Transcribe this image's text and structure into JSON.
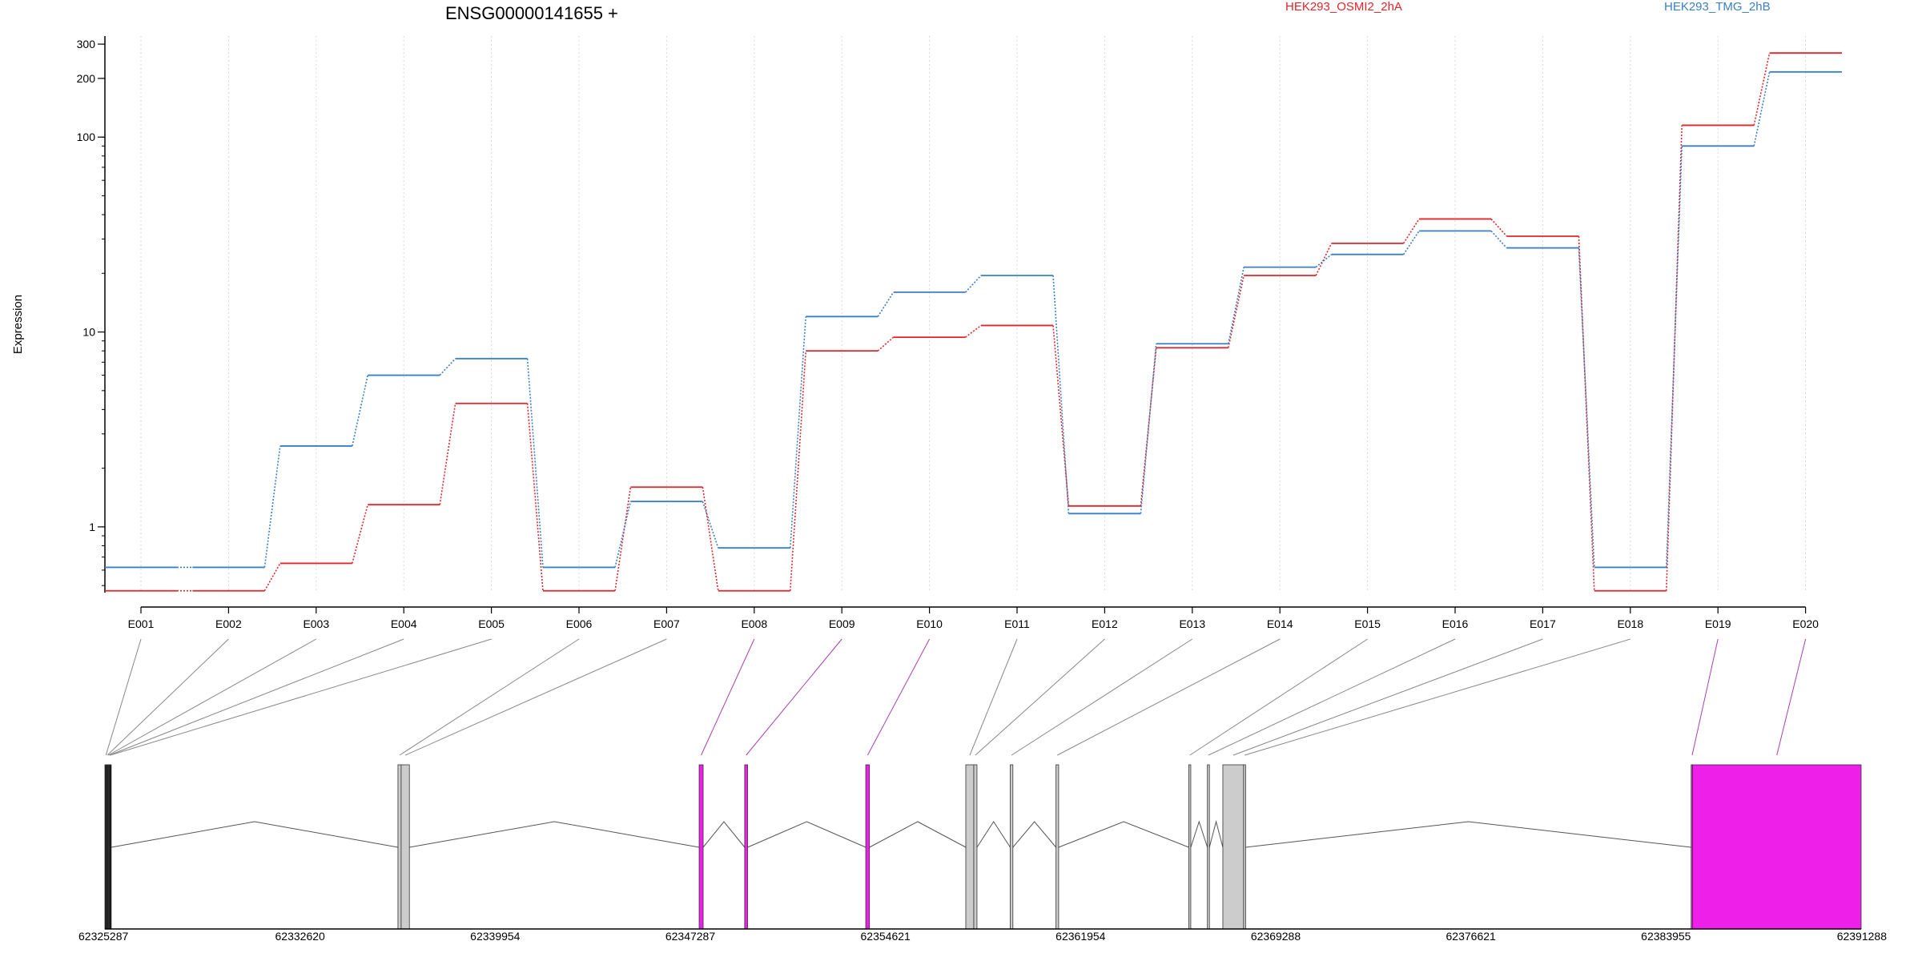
{
  "chart_data": {
    "type": "line",
    "title": "ENSG00000141655 +",
    "ylabel": "Expression",
    "y_scale": "log",
    "ylim": [
      0.46,
      330
    ],
    "y_ticks": [
      1,
      10,
      100,
      200,
      300
    ],
    "y_tick_labels": [
      "1",
      "10",
      "100",
      "200",
      "300"
    ],
    "grid": "vertical dotted per exon",
    "legend_placement": "top-right",
    "categories": [
      "E001",
      "E002",
      "E003",
      "E004",
      "E005",
      "E006",
      "E007",
      "E008",
      "E009",
      "E010",
      "E011",
      "E012",
      "E013",
      "E014",
      "E015",
      "E016",
      "E017",
      "E018",
      "E019",
      "E020"
    ],
    "series": [
      {
        "name": "HEK293_OSMI2_2hA",
        "color": "#e3242b",
        "values": [
          0.47,
          0.47,
          0.65,
          1.3,
          4.3,
          0.47,
          1.6,
          0.47,
          8.0,
          9.4,
          10.8,
          1.28,
          8.3,
          19.5,
          28.5,
          38.0,
          31.0,
          0.47,
          115,
          270
        ]
      },
      {
        "name": "HEK293_TMG_2hB",
        "color": "#3b7fc4",
        "values": [
          0.62,
          0.62,
          2.6,
          6.0,
          7.3,
          0.62,
          1.35,
          0.78,
          12.0,
          16.0,
          19.5,
          1.17,
          8.7,
          21.5,
          25.0,
          33.0,
          27.0,
          0.62,
          90,
          216
        ]
      }
    ],
    "gene_model": {
      "coord_ticks": [
        "62325287",
        "62332620",
        "62339954",
        "62347287",
        "62354621",
        "62361954",
        "62369288",
        "62376621",
        "62383955",
        "62391288"
      ],
      "coord_range": [
        62325287,
        62391288
      ],
      "exons": [
        {
          "id": "E001",
          "start": 62325287,
          "end": 62325340,
          "color": "#111111"
        },
        {
          "id": "E002",
          "start": 62325340,
          "end": 62325380,
          "color": "#111111"
        },
        {
          "id": "E003",
          "start": 62325380,
          "end": 62325420,
          "color": "#111111"
        },
        {
          "id": "E004",
          "start": 62325420,
          "end": 62325450,
          "color": "#111111"
        },
        {
          "id": "E005",
          "start": 62325450,
          "end": 62325480,
          "color": "#111111"
        },
        {
          "id": "E006",
          "start": 62336300,
          "end": 62336420,
          "color": "#cccccc"
        },
        {
          "id": "E007",
          "start": 62336420,
          "end": 62336730,
          "color": "#cccccc"
        },
        {
          "id": "E008",
          "start": 62347620,
          "end": 62347770,
          "color": "#ee1fe8"
        },
        {
          "id": "E009",
          "start": 62349330,
          "end": 62349440,
          "color": "#ee1fe8"
        },
        {
          "id": "E010",
          "start": 62353880,
          "end": 62354020,
          "color": "#ee1fe8"
        },
        {
          "id": "E011",
          "start": 62357640,
          "end": 62357940,
          "color": "#cccccc"
        },
        {
          "id": "E012",
          "start": 62357940,
          "end": 62358060,
          "color": "#cccccc"
        },
        {
          "id": "E013",
          "start": 62359310,
          "end": 62359410,
          "color": "#cccccc"
        },
        {
          "id": "E014",
          "start": 62361030,
          "end": 62361130,
          "color": "#cccccc"
        },
        {
          "id": "E015",
          "start": 62366020,
          "end": 62366070,
          "color": "#cccccc"
        },
        {
          "id": "E016",
          "start": 62366720,
          "end": 62366770,
          "color": "#cccccc"
        },
        {
          "id": "E017",
          "start": 62367300,
          "end": 62368080,
          "color": "#cccccc"
        },
        {
          "id": "E018",
          "start": 62368080,
          "end": 62368100,
          "color": "#cccccc"
        },
        {
          "id": "E019",
          "start": 62384900,
          "end": 62384950,
          "color": "#ee1fe8"
        },
        {
          "id": "E020",
          "start": 62384950,
          "end": 62391288,
          "color": "#ee1fe8"
        }
      ]
    }
  }
}
